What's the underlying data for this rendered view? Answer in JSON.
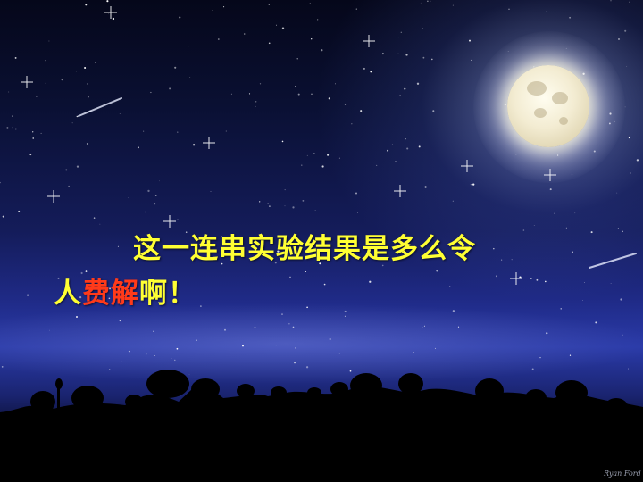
{
  "caption": {
    "line1": "这一连串实验结果是多么令",
    "line2_a": "人",
    "line2_b": "费解",
    "line2_c": "啊！"
  },
  "signature": "Ryan Ford",
  "colors": {
    "caption_primary": "#ffff33",
    "caption_emphasis": "#ff3a1a"
  }
}
